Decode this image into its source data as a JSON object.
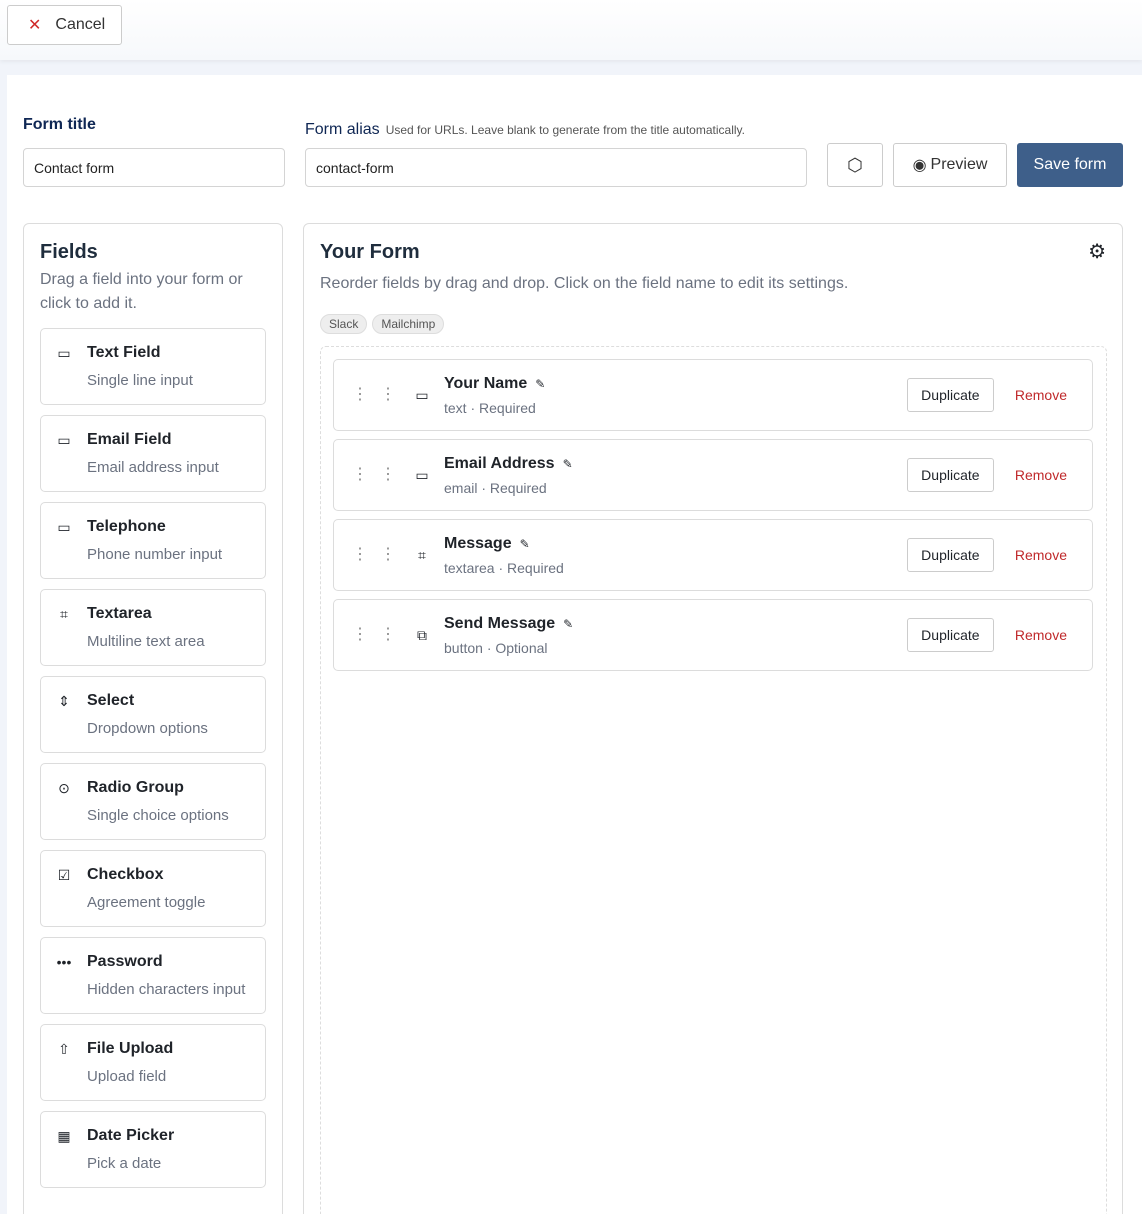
{
  "topbar": {
    "cancel_label": "Cancel"
  },
  "form_title": {
    "label": "Form title",
    "value": "Contact form"
  },
  "form_alias": {
    "label": "Form alias",
    "hint": "Used for URLs. Leave blank to generate from the title automatically.",
    "value": "contact-form"
  },
  "actions": {
    "preview_label": "Preview",
    "save_label": "Save form"
  },
  "fields_panel": {
    "title": "Fields",
    "subtitle": "Drag a field into your form or click to add it.",
    "items": [
      {
        "title": "Text Field",
        "desc": "Single line input",
        "icon": "text-field-icon",
        "glyph": "▭"
      },
      {
        "title": "Email Field",
        "desc": "Email address input",
        "icon": "email-field-icon",
        "glyph": "▭"
      },
      {
        "title": "Telephone",
        "desc": "Phone number input",
        "icon": "telephone-icon",
        "glyph": "▭"
      },
      {
        "title": "Textarea",
        "desc": "Multiline text area",
        "icon": "textarea-icon",
        "glyph": "⌗"
      },
      {
        "title": "Select",
        "desc": "Dropdown options",
        "icon": "select-icon",
        "glyph": "⇕"
      },
      {
        "title": "Radio Group",
        "desc": "Single choice options",
        "icon": "radio-icon",
        "glyph": "⊙"
      },
      {
        "title": "Checkbox",
        "desc": "Agreement toggle",
        "icon": "checkbox-icon",
        "glyph": "☑"
      },
      {
        "title": "Password",
        "desc": "Hidden characters input",
        "icon": "password-icon",
        "glyph": "•••"
      },
      {
        "title": "File Upload",
        "desc": "Upload field",
        "icon": "upload-icon",
        "glyph": "⇧"
      },
      {
        "title": "Date Picker",
        "desc": "Pick a date",
        "icon": "calendar-icon",
        "glyph": "▦"
      }
    ]
  },
  "form_panel": {
    "title": "Your Form",
    "subtitle": "Reorder fields by drag and drop. Click on the field name to edit its settings.",
    "tags": [
      "Slack",
      "Mailchimp"
    ],
    "rows": [
      {
        "name": "Your Name",
        "meta": "text · Required",
        "icon": "text-field-icon",
        "glyph": "▭"
      },
      {
        "name": "Email Address",
        "meta": "email · Required",
        "icon": "email-field-icon",
        "glyph": "▭"
      },
      {
        "name": "Message",
        "meta": "textarea · Required",
        "icon": "textarea-icon",
        "glyph": "⌗"
      },
      {
        "name": "Send Message",
        "meta": "button · Optional",
        "icon": "button-icon",
        "glyph": "⧉"
      }
    ],
    "duplicate_label": "Duplicate",
    "remove_label": "Remove"
  },
  "colors": {
    "primary": "#3e5f8a",
    "danger": "#c0292b",
    "heading": "#0f2754"
  }
}
